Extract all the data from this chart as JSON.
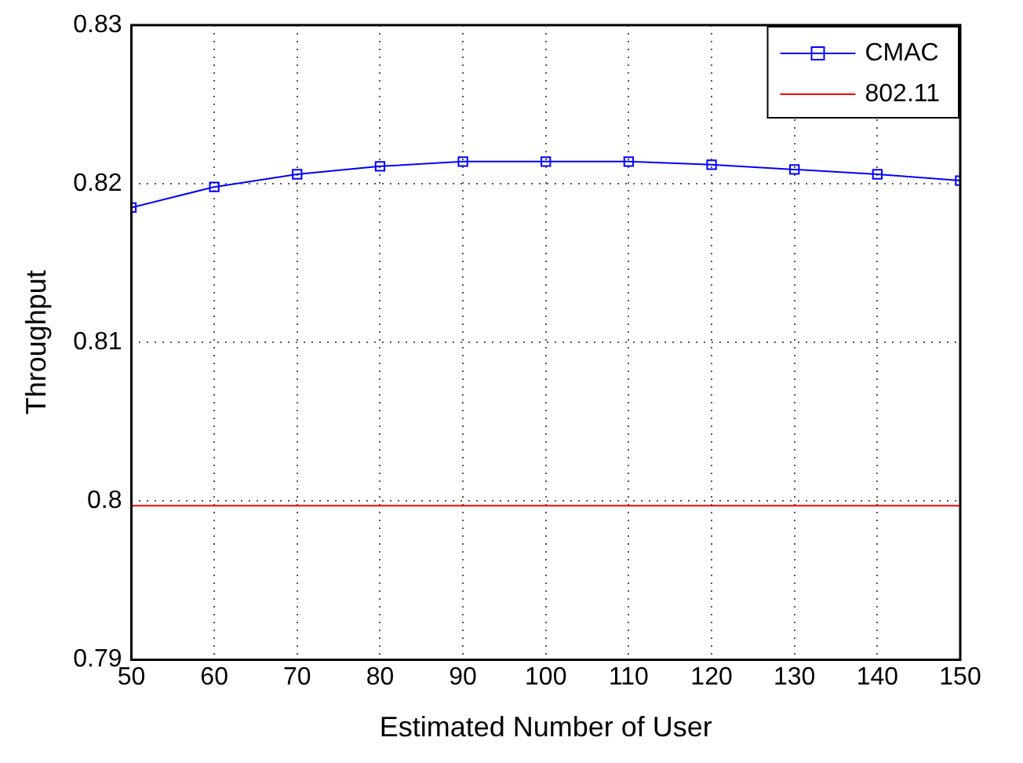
{
  "chart_data": {
    "type": "line",
    "xlabel": "Estimated Number of User",
    "ylabel": "Throughput",
    "x": [
      50,
      60,
      70,
      80,
      90,
      100,
      110,
      120,
      130,
      140,
      150
    ],
    "series": [
      {
        "name": "CMAC",
        "color": "#0000ff",
        "marker": "square",
        "values": [
          0.8185,
          0.8198,
          0.8206,
          0.8211,
          0.8214,
          0.8214,
          0.8214,
          0.8212,
          0.8209,
          0.8206,
          0.8202
        ]
      },
      {
        "name": "802.11",
        "color": "#ff0000",
        "marker": "none",
        "values": [
          0.7997,
          0.7997,
          0.7997,
          0.7997,
          0.7997,
          0.7997,
          0.7997,
          0.7997,
          0.7997,
          0.7997,
          0.7997
        ]
      }
    ],
    "xlim": [
      50,
      150
    ],
    "xticks": [
      50,
      60,
      70,
      80,
      90,
      100,
      110,
      120,
      130,
      140,
      150
    ],
    "ylim": [
      0.79,
      0.83
    ],
    "yticks": [
      0.79,
      0.8,
      0.81,
      0.82,
      0.83
    ],
    "grid": true,
    "legend": "top right",
    "line_style": "solid"
  }
}
